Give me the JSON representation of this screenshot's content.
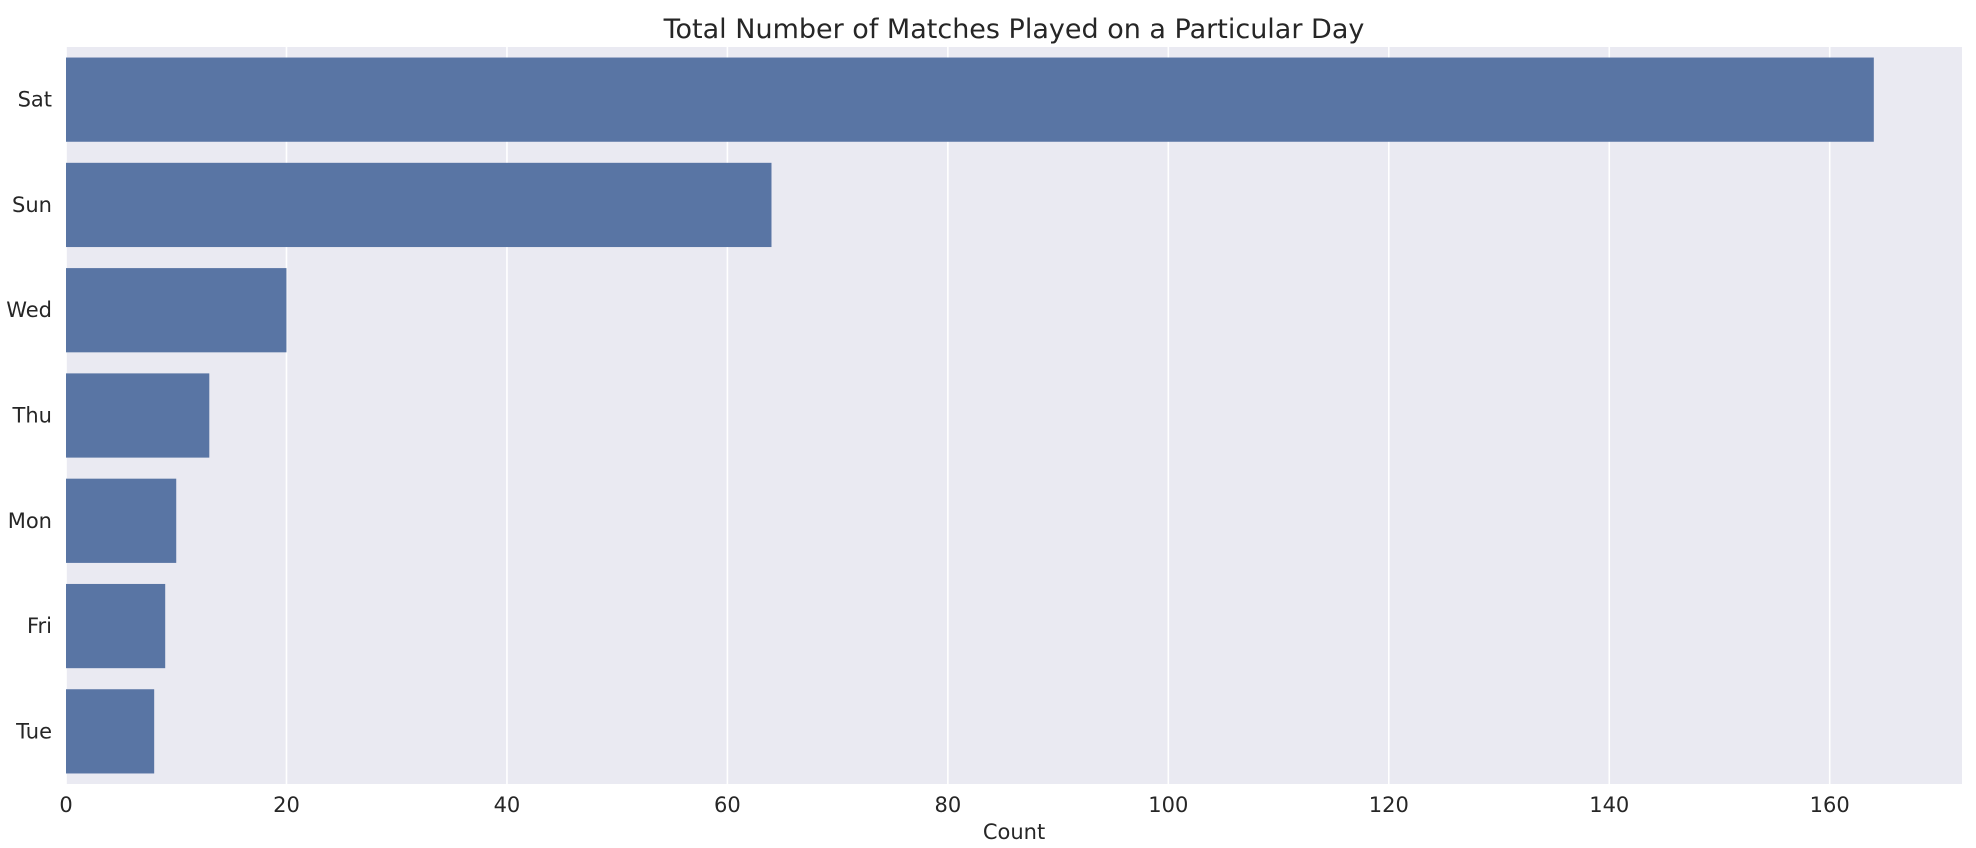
{
  "chart_data": {
    "type": "bar",
    "orientation": "horizontal",
    "title": "Total Number of Matches Played on a Particular Day",
    "xlabel": "Count",
    "ylabel": "",
    "categories": [
      "Sat",
      "Sun",
      "Wed",
      "Thu",
      "Mon",
      "Fri",
      "Tue"
    ],
    "values": [
      164,
      64,
      20,
      13,
      10,
      9,
      8
    ],
    "xlim": [
      0,
      172
    ],
    "xticks": [
      0,
      20,
      40,
      60,
      80,
      100,
      120,
      140,
      160
    ],
    "grid": true,
    "colors": {
      "bar": "#5975a4",
      "plot_background": "#eaeaf2",
      "grid": "#ffffff",
      "text": "#262626"
    }
  }
}
